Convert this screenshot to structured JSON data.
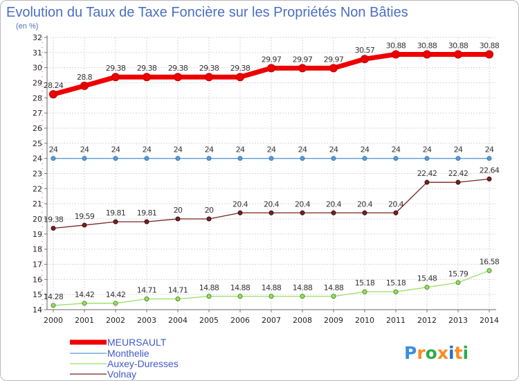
{
  "chart_data": {
    "type": "line",
    "title": "Evolution du Taux de Taxe Foncière sur les Propriétés Non Bâties",
    "ylabel": "(en %)",
    "xlabel": "",
    "x": [
      "2000",
      "2001",
      "2002",
      "2003",
      "2004",
      "2005",
      "2006",
      "2007",
      "2008",
      "2009",
      "2010",
      "2011",
      "2012",
      "2013",
      "2014"
    ],
    "ylim": [
      14,
      32
    ],
    "yticks": [
      14,
      15,
      16,
      17,
      18,
      19,
      20,
      21,
      22,
      23,
      24,
      25,
      26,
      27,
      28,
      29,
      30,
      31,
      32
    ],
    "grid": true,
    "legend_position": "bottom-left",
    "series": [
      {
        "name": "MEURSAULT",
        "color": "#ee0000",
        "values": [
          28.24,
          28.8,
          29.38,
          29.38,
          29.38,
          29.38,
          29.38,
          29.97,
          29.97,
          29.97,
          30.57,
          30.88,
          30.88,
          30.88,
          30.88
        ],
        "labels": [
          "28.24",
          "28.8",
          "29.38",
          "29.38",
          "29.38",
          "29.38",
          "29.38",
          "29.97",
          "29.97",
          "29.97",
          "30.57",
          "30.88",
          "30.88",
          "30.88",
          "30.88"
        ]
      },
      {
        "name": "Monthelie",
        "color": "#5b9bd5",
        "values": [
          24,
          24,
          24,
          24,
          24,
          24,
          24,
          24,
          24,
          24,
          24,
          24,
          24,
          24,
          24
        ],
        "labels": [
          "24",
          "24",
          "24",
          "24",
          "24",
          "24",
          "24",
          "24",
          "24",
          "24",
          "24",
          "24",
          "24",
          "24",
          "24"
        ]
      },
      {
        "name": "Auxey-Duresses",
        "color": "#99dd66",
        "values": [
          14.28,
          14.42,
          14.42,
          14.71,
          14.71,
          14.88,
          14.88,
          14.88,
          14.88,
          14.88,
          15.18,
          15.18,
          15.48,
          15.79,
          16.58
        ],
        "labels": [
          "14.28",
          "14.42",
          "14.42",
          "14.71",
          "14.71",
          "14.88",
          "14.88",
          "14.88",
          "14.88",
          "14.88",
          "15.18",
          "15.18",
          "15.48",
          "15.79",
          "16.58"
        ]
      },
      {
        "name": "Volnay",
        "color": "#772222",
        "values": [
          19.38,
          19.59,
          19.81,
          19.81,
          20,
          20,
          20.4,
          20.4,
          20.4,
          20.4,
          20.4,
          20.4,
          22.42,
          22.42,
          22.64
        ],
        "labels": [
          "19.38",
          "19.59",
          "19.81",
          "19.81",
          "20",
          "20",
          "20.4",
          "20.4",
          "20.4",
          "20.4",
          "20.4",
          "20.4",
          "22.42",
          "22.42",
          "22.64"
        ]
      }
    ]
  },
  "logo": {
    "letters": [
      "P",
      "r",
      "o",
      "x",
      "i",
      "t",
      "i"
    ],
    "colors": [
      "#3a8ee0",
      "#ff8a1e",
      "#2cab4c",
      "#ff8a1e",
      "#1f6fd0",
      "#ff8a1e",
      "#2cab4c"
    ]
  }
}
